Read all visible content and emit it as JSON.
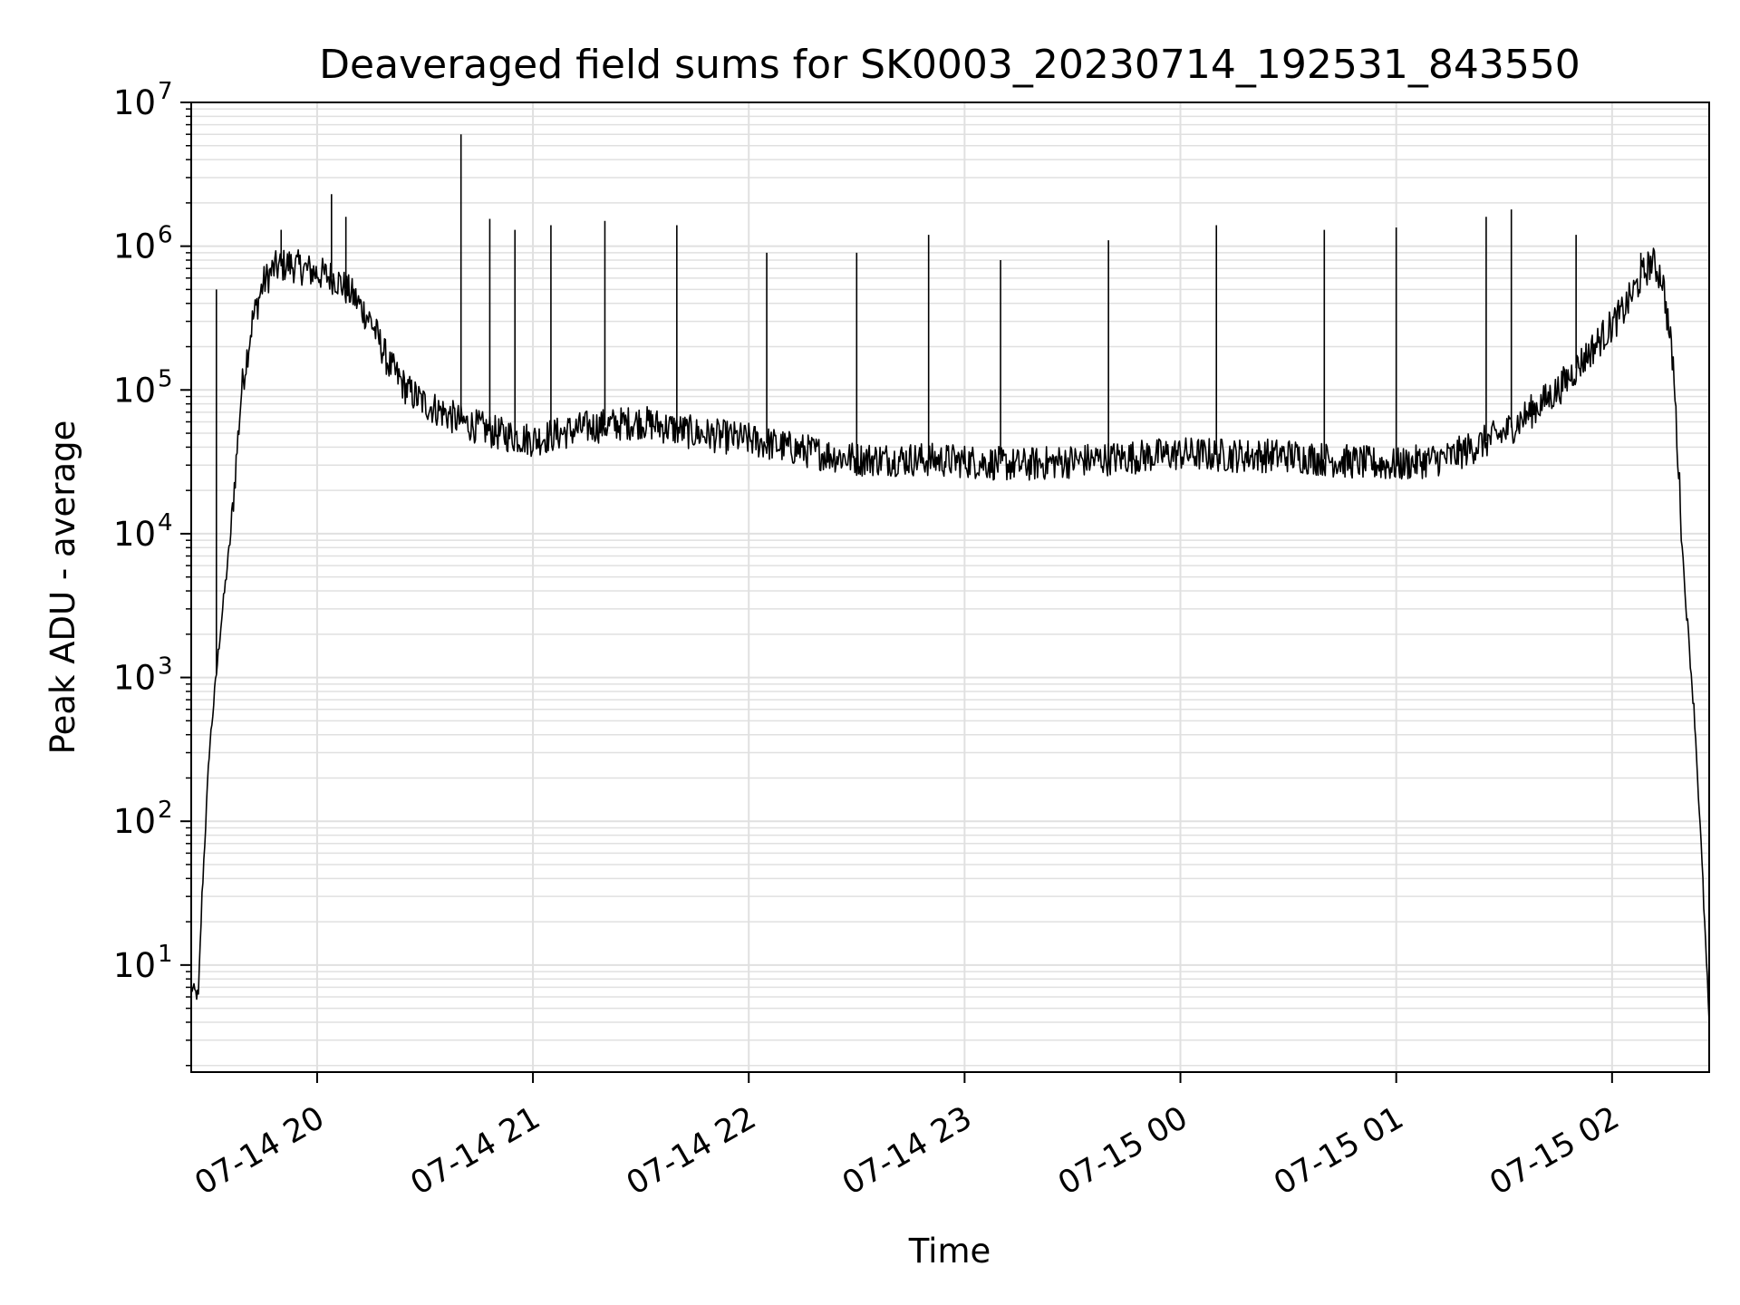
{
  "chart_data": {
    "type": "line",
    "title": "Deaveraged field sums for SK0003_20230714_192531_843550",
    "xlabel": "Time",
    "ylabel": "Peak ADU - average",
    "yscale": "log",
    "ylim": [
      1.8,
      10000000
    ],
    "xlim": [
      "07-14 19:25",
      "07-15 02:27"
    ],
    "grid": true,
    "line_color": "#000000",
    "grid_color": "#e0e0e0",
    "x_ticks": [
      "07-14 20",
      "07-14 21",
      "07-14 22",
      "07-14 23",
      "07-15 00",
      "07-15 01",
      "07-15 02"
    ],
    "y_ticks": [
      {
        "base": "10",
        "exp": "1"
      },
      {
        "base": "10",
        "exp": "2"
      },
      {
        "base": "10",
        "exp": "3"
      },
      {
        "base": "10",
        "exp": "4"
      },
      {
        "base": "10",
        "exp": "5"
      },
      {
        "base": "10",
        "exp": "6"
      },
      {
        "base": "10",
        "exp": "7"
      }
    ],
    "series": [
      {
        "x": [
          "07-14 19:25",
          "07-14 19:27",
          "07-14 19:28",
          "07-14 19:30",
          "07-14 19:33",
          "07-14 19:36",
          "07-14 19:39",
          "07-14 19:42",
          "07-14 19:45",
          "07-14 19:48",
          "07-14 19:52",
          "07-14 19:56",
          "07-14 20:00",
          "07-14 20:05",
          "07-14 20:10",
          "07-14 20:15",
          "07-14 20:20",
          "07-14 20:25",
          "07-14 20:30",
          "07-14 20:35",
          "07-14 20:40",
          "07-14 20:45",
          "07-14 20:50",
          "07-14 21:00",
          "07-14 21:15",
          "07-14 21:30",
          "07-14 21:45",
          "07-14 22:00",
          "07-14 22:15",
          "07-14 22:30",
          "07-14 22:45",
          "07-14 23:00",
          "07-14 23:15",
          "07-14 23:30",
          "07-14 23:45",
          "07-15 00:00",
          "07-15 00:15",
          "07-15 00:30",
          "07-15 00:45",
          "07-15 01:00",
          "07-15 01:15",
          "07-15 01:30",
          "07-15 01:45",
          "07-15 01:55",
          "07-15 02:03",
          "07-15 02:08",
          "07-15 02:11",
          "07-15 02:14",
          "07-15 02:17",
          "07-15 02:20",
          "07-15 02:23",
          "07-15 02:25",
          "07-15 02:27"
        ],
        "y": [
          7,
          6,
          30,
          300,
          2000,
          10000,
          100000,
          300000,
          550000,
          700000,
          750000,
          700000,
          650000,
          600000,
          450000,
          300000,
          150000,
          100000,
          80000,
          70000,
          60000,
          55000,
          50000,
          45000,
          55000,
          60000,
          50000,
          45000,
          38000,
          33000,
          33000,
          32000,
          30000,
          32000,
          34000,
          36000,
          35000,
          35000,
          32000,
          30000,
          34000,
          50000,
          100000,
          200000,
          350000,
          600000,
          780000,
          600000,
          150000,
          5000,
          500,
          50,
          4
        ]
      }
    ],
    "spikes": [
      {
        "x": "07-14 19:32",
        "y": 500000
      },
      {
        "x": "07-14 19:50",
        "y": 1300000
      },
      {
        "x": "07-14 20:04",
        "y": 2300000
      },
      {
        "x": "07-14 20:08",
        "y": 1600000
      },
      {
        "x": "07-14 20:40",
        "y": 6000000
      },
      {
        "x": "07-14 20:48",
        "y": 1550000
      },
      {
        "x": "07-14 20:55",
        "y": 1300000
      },
      {
        "x": "07-14 21:05",
        "y": 1400000
      },
      {
        "x": "07-14 21:20",
        "y": 1500000
      },
      {
        "x": "07-14 21:40",
        "y": 1400000
      },
      {
        "x": "07-14 22:05",
        "y": 900000
      },
      {
        "x": "07-14 22:30",
        "y": 900000
      },
      {
        "x": "07-14 22:50",
        "y": 1200000
      },
      {
        "x": "07-14 23:10",
        "y": 800000
      },
      {
        "x": "07-14 23:40",
        "y": 1100000
      },
      {
        "x": "07-15 00:10",
        "y": 1400000
      },
      {
        "x": "07-15 00:40",
        "y": 1300000
      },
      {
        "x": "07-15 01:00",
        "y": 1350000
      },
      {
        "x": "07-15 01:25",
        "y": 1600000
      },
      {
        "x": "07-15 01:32",
        "y": 1800000
      },
      {
        "x": "07-15 01:50",
        "y": 1200000
      },
      {
        "x": "07-15 02:08",
        "y": 900000
      }
    ]
  }
}
